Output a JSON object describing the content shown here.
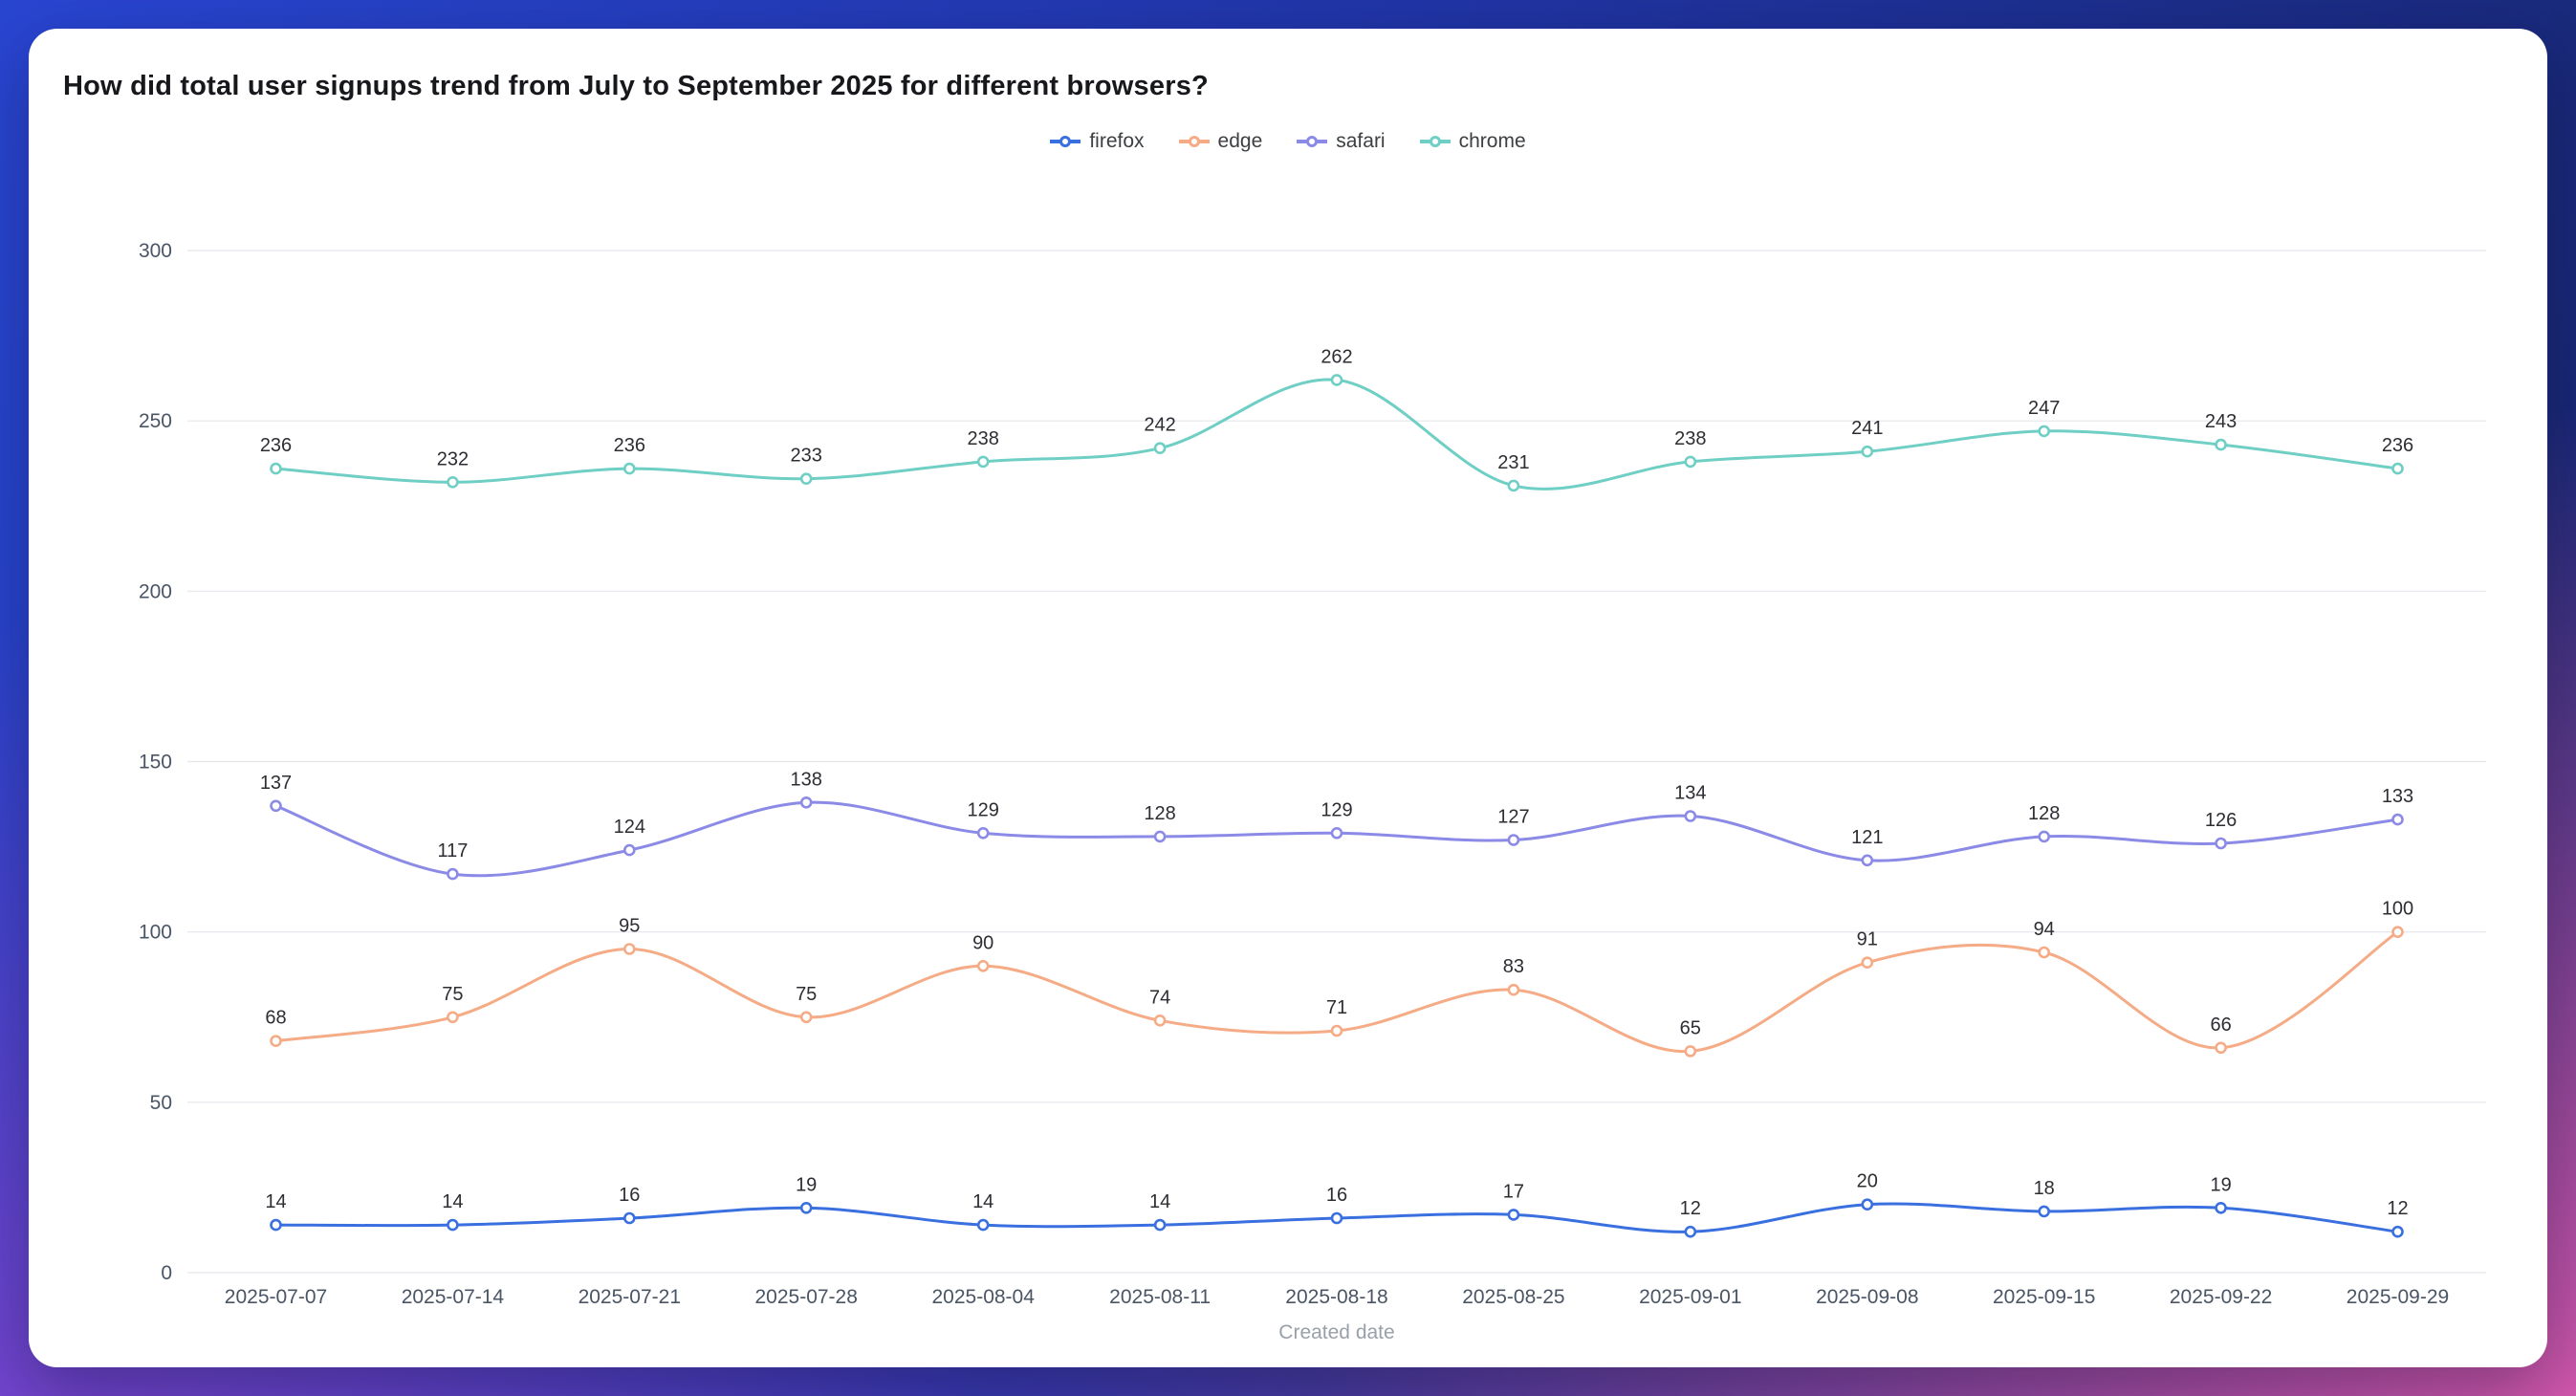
{
  "page": {
    "title": "How did total user signups trend from July to September 2025 for different browsers?"
  },
  "chart_data": {
    "type": "line",
    "title": "How did total user signups trend from July to September 2025 for different browsers?",
    "xlabel": "Created date",
    "ylabel": "",
    "ylim": [
      0,
      300
    ],
    "yticks": [
      0,
      50,
      100,
      150,
      200,
      250,
      300
    ],
    "grid": true,
    "smooth": true,
    "point_labels": true,
    "legend_position": "top",
    "x": [
      "2025-07-07",
      "2025-07-14",
      "2025-07-21",
      "2025-07-28",
      "2025-08-04",
      "2025-08-11",
      "2025-08-18",
      "2025-08-25",
      "2025-09-01",
      "2025-09-08",
      "2025-09-15",
      "2025-09-22",
      "2025-09-29"
    ],
    "series": [
      {
        "name": "firefox",
        "color": "#3a6fe0",
        "values": [
          14,
          14,
          16,
          19,
          14,
          14,
          16,
          17,
          12,
          20,
          18,
          19,
          12
        ]
      },
      {
        "name": "edge",
        "color": "#f5ab85",
        "values": [
          68,
          75,
          95,
          75,
          90,
          74,
          71,
          83,
          65,
          91,
          94,
          66,
          100
        ]
      },
      {
        "name": "safari",
        "color": "#8b8ae6",
        "values": [
          137,
          117,
          124,
          138,
          129,
          128,
          129,
          127,
          134,
          121,
          128,
          126,
          133
        ]
      },
      {
        "name": "chrome",
        "color": "#6fcfc4",
        "values": [
          236,
          232,
          236,
          233,
          238,
          242,
          262,
          231,
          238,
          241,
          247,
          243,
          236
        ]
      }
    ],
    "colors": {
      "grid": "#e4e6ec",
      "axis_text": "#4a5565",
      "label_text": "#2d2d33",
      "axis_title": "#9aa0a8"
    }
  }
}
